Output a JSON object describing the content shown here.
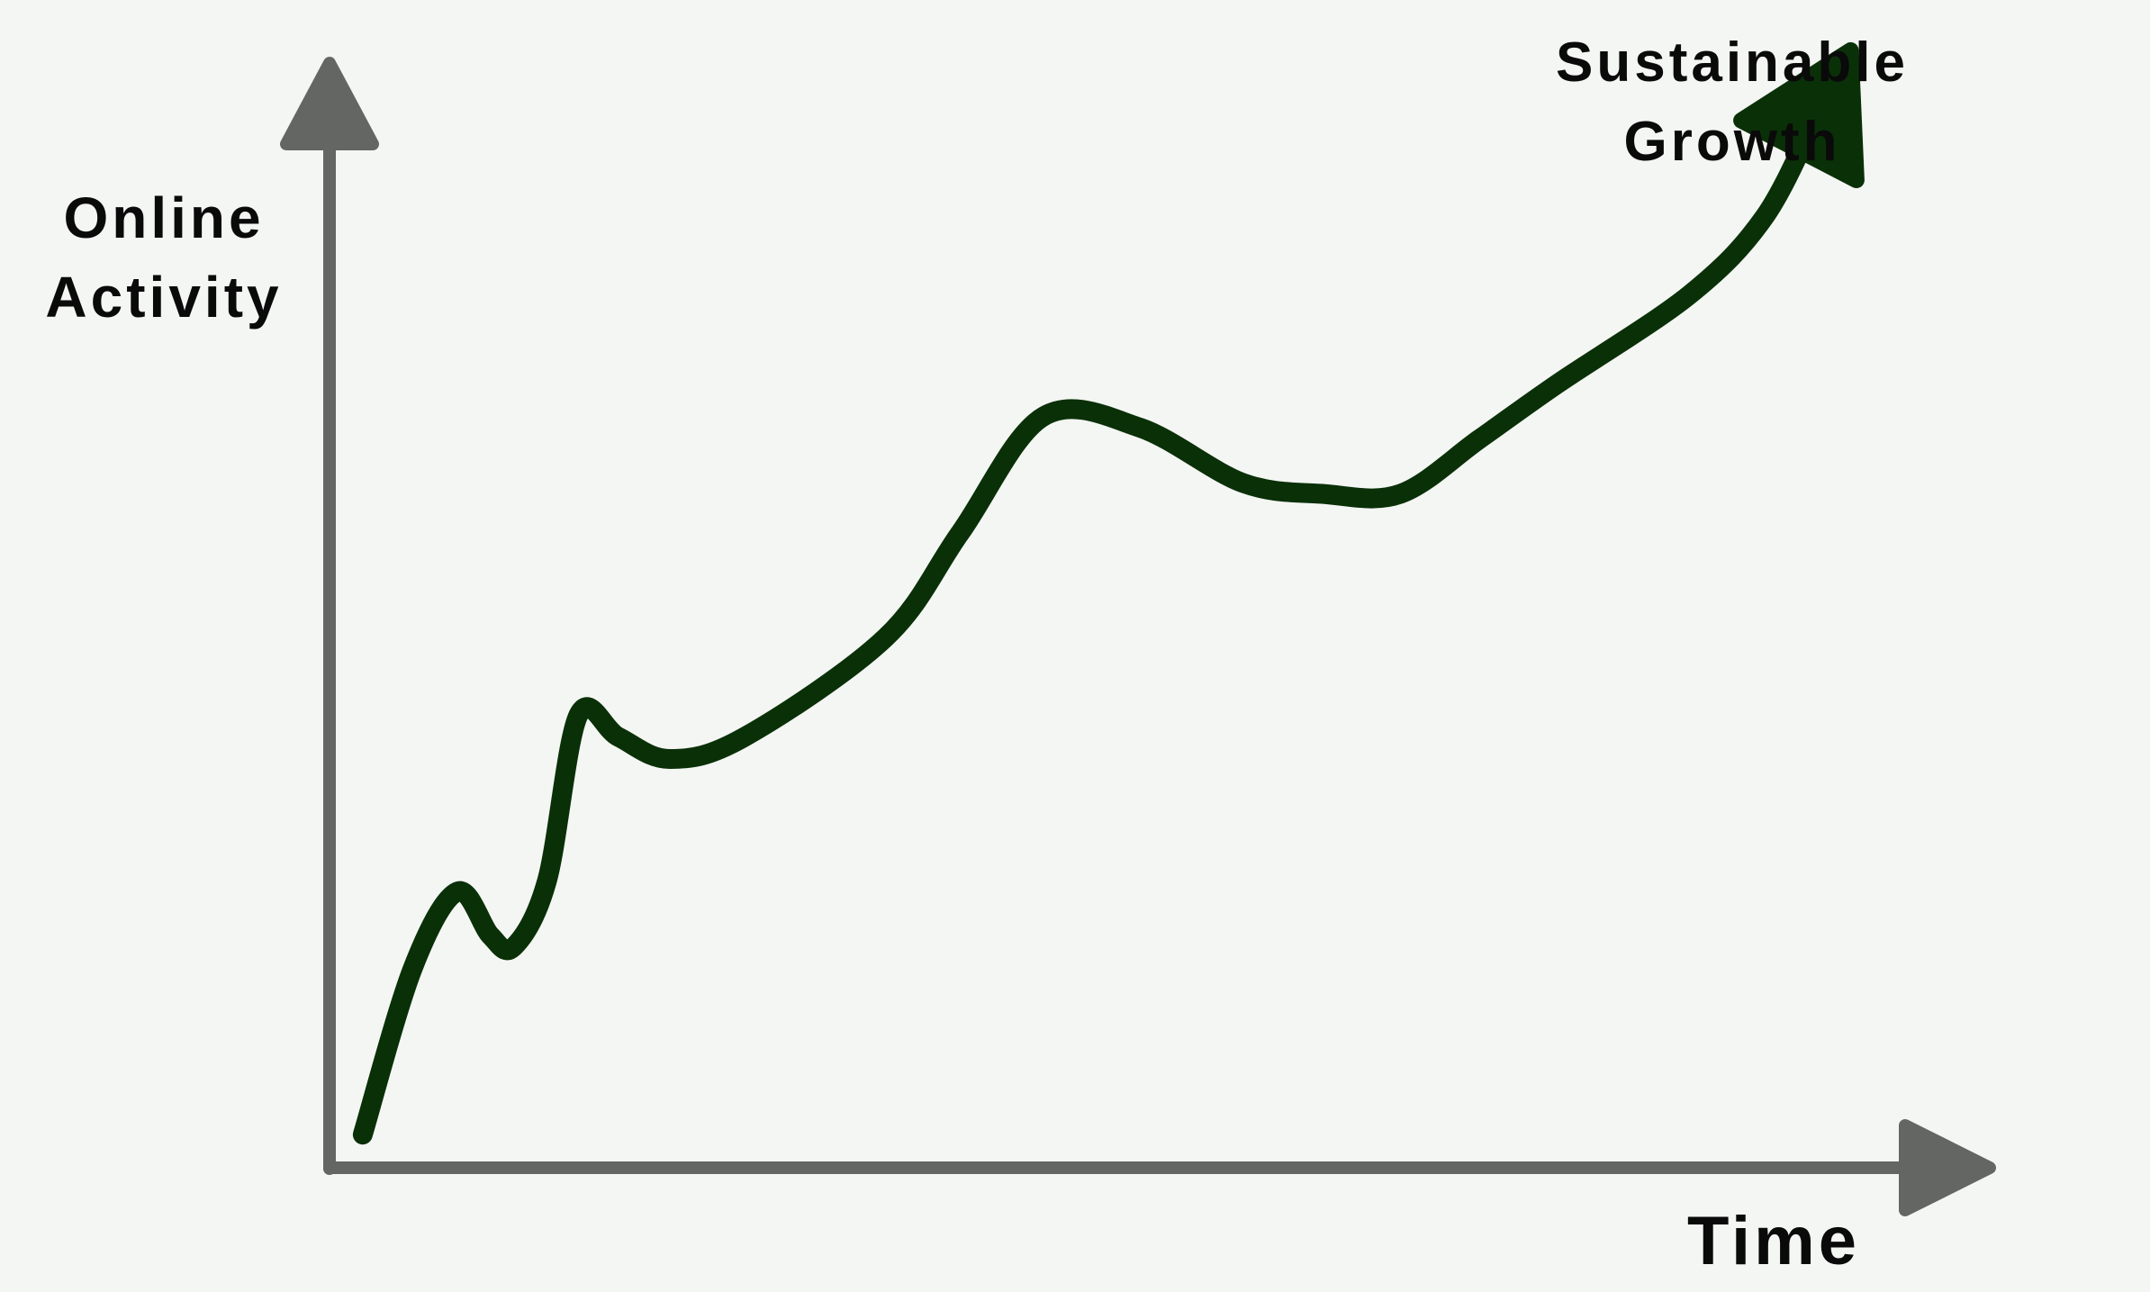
{
  "chart_data": {
    "type": "line",
    "title": "",
    "xlabel": "Time",
    "ylabel_lines": [
      "Online",
      "Activity"
    ],
    "grid": false,
    "legend": "none",
    "xlim": [
      0,
      100
    ],
    "ylim": [
      0,
      100
    ],
    "series": [
      {
        "color": "#0a3008",
        "points": [
          [
            2,
            3
          ],
          [
            5,
            18
          ],
          [
            7.7,
            25
          ],
          [
            9.7,
            21
          ],
          [
            11.1,
            20
          ],
          [
            13.1,
            26
          ],
          [
            15,
            41
          ],
          [
            17.4,
            39
          ],
          [
            20.5,
            37
          ],
          [
            25,
            39
          ],
          [
            33.5,
            48
          ],
          [
            38,
            57.5
          ],
          [
            43,
            68
          ],
          [
            48.8,
            67
          ],
          [
            55,
            62
          ],
          [
            59.8,
            61
          ],
          [
            64.5,
            61
          ],
          [
            69.3,
            66
          ],
          [
            74,
            71
          ],
          [
            81.9,
            79
          ],
          [
            86.4,
            86
          ],
          [
            89.5,
            95
          ]
        ]
      }
    ],
    "annotations": [
      {
        "lines": [
          "Sustainable",
          "Growth"
        ],
        "position": "top-right"
      }
    ],
    "colors": {
      "axis": "#636663",
      "line": "#0a3008",
      "text": "#0a0a0a",
      "background": "#f4f6f3"
    }
  }
}
